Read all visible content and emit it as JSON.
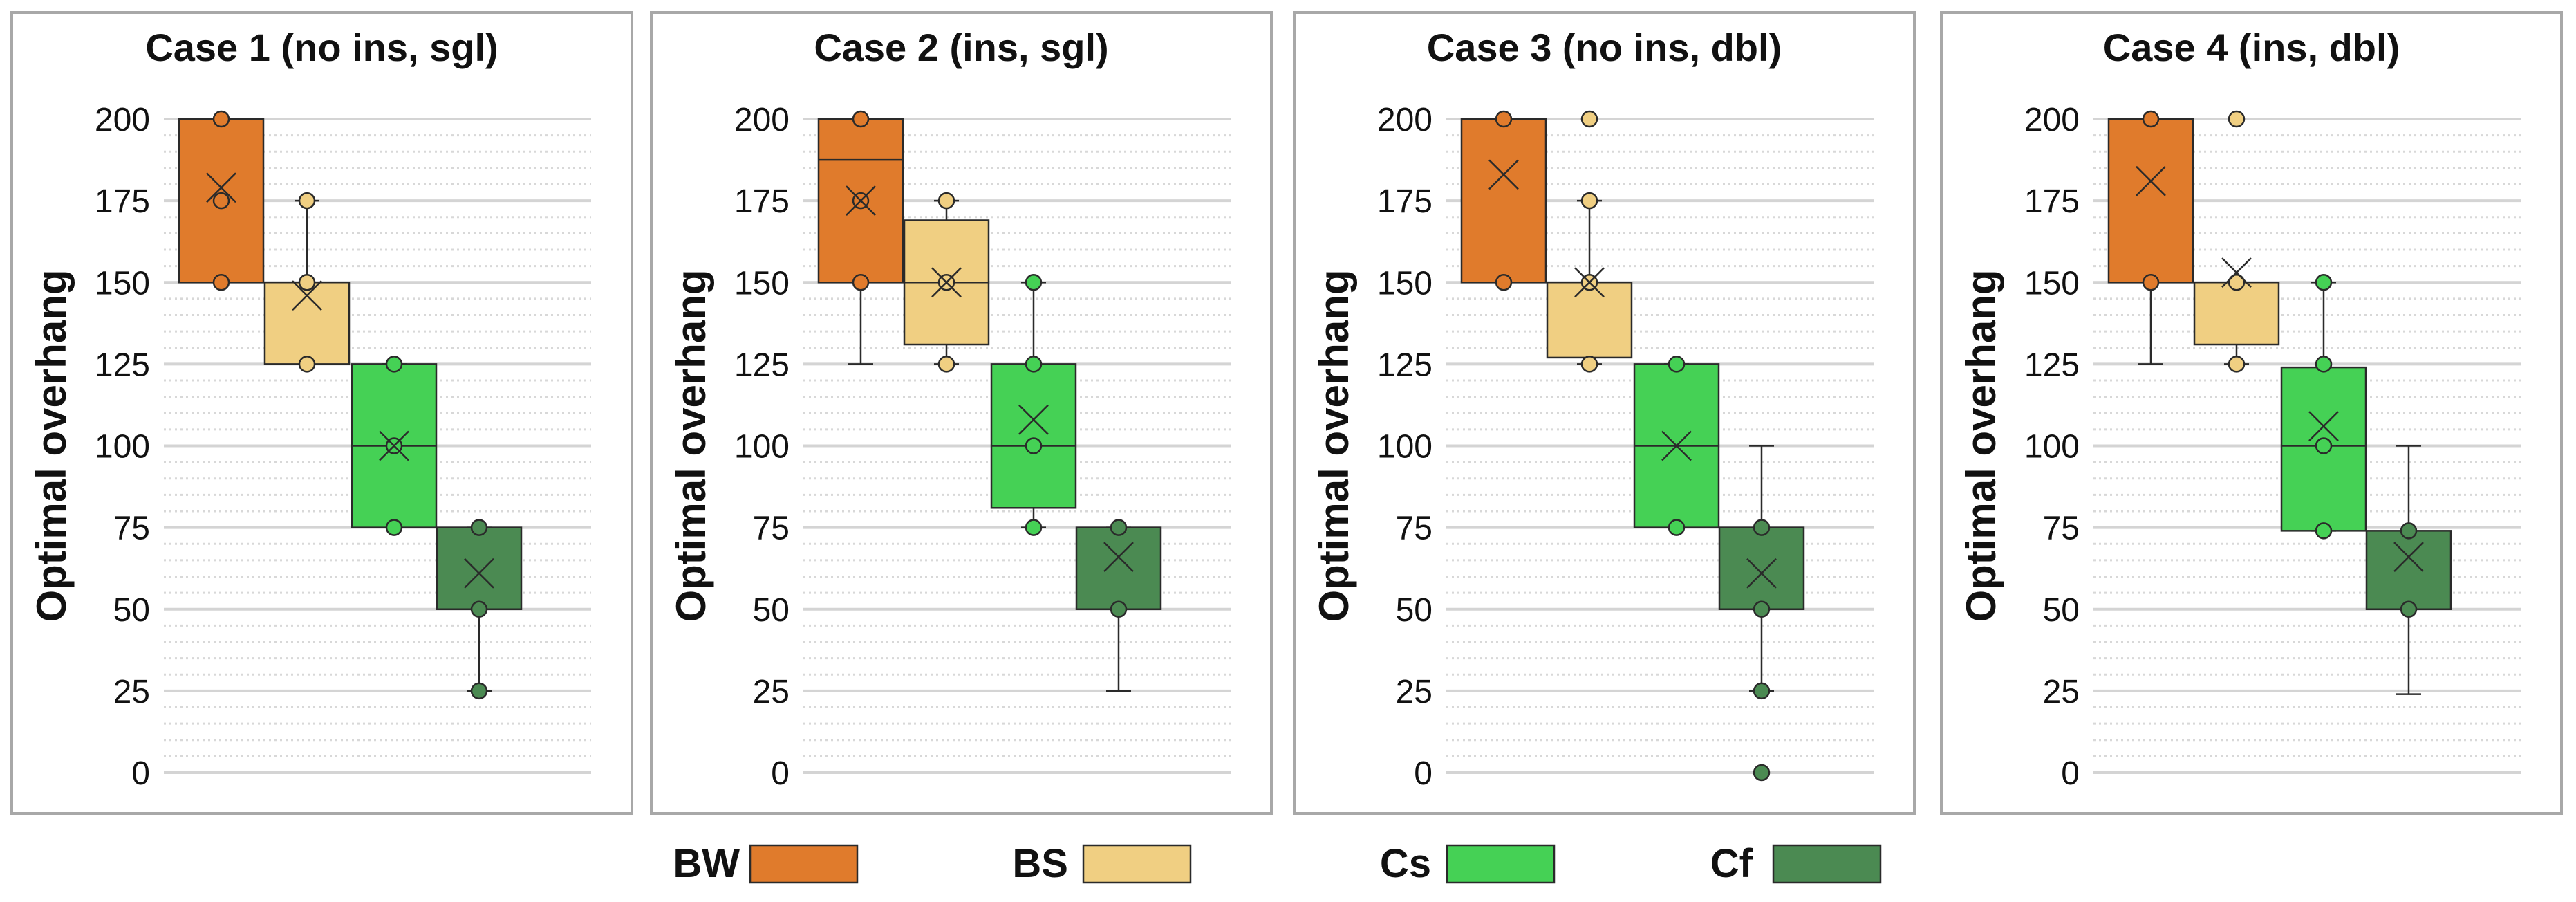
{
  "colors": {
    "BW": "#e07b2c",
    "BS": "#f0cf82",
    "Cs": "#45d155",
    "Cf": "#4b8a52",
    "panel_border": "#a8a8a8",
    "grid_major": "#d4d4d4",
    "grid_minor": "#d8d8d8",
    "stroke": "#2a2a2a"
  },
  "legend": [
    {
      "key": "BW",
      "label": "BW"
    },
    {
      "key": "BS",
      "label": "BS"
    },
    {
      "key": "Cs",
      "label": "Cs"
    },
    {
      "key": "Cf",
      "label": "Cf"
    }
  ],
  "chart_data": [
    {
      "type": "box",
      "title": "Case 1 (no ins, sgl)",
      "ylabel": "Optimal overhang",
      "ylim": [
        0,
        200
      ],
      "yticks": [
        0,
        25,
        50,
        75,
        100,
        125,
        150,
        175,
        200
      ],
      "grid": true,
      "boxes": [
        {
          "series": "BW",
          "q1": 150,
          "median": 150,
          "q3": 200,
          "whisker_low": 150,
          "whisker_high": 200,
          "mean": 179,
          "points": [
            150,
            175,
            200
          ]
        },
        {
          "series": "BS",
          "q1": 125,
          "median": 150,
          "q3": 150,
          "whisker_low": 125,
          "whisker_high": 175,
          "mean": 146,
          "points": [
            125,
            150,
            175
          ]
        },
        {
          "series": "Cs",
          "q1": 75,
          "median": 100,
          "q3": 125,
          "whisker_low": 75,
          "whisker_high": 125,
          "mean": 100,
          "points": [
            75,
            100,
            125
          ]
        },
        {
          "series": "Cf",
          "q1": 50,
          "median": 50,
          "q3": 75,
          "whisker_low": 25,
          "whisker_high": 75,
          "mean": 61,
          "points": [
            25,
            50,
            75
          ]
        }
      ]
    },
    {
      "type": "box",
      "title": "Case 2 (ins, sgl)",
      "ylabel": "Optimal overhang",
      "ylim": [
        0,
        200
      ],
      "yticks": [
        0,
        25,
        50,
        75,
        100,
        125,
        150,
        175,
        200
      ],
      "grid": true,
      "boxes": [
        {
          "series": "BW",
          "q1": 150,
          "median": 187.5,
          "q3": 200,
          "whisker_low": 125,
          "whisker_high": 200,
          "mean": 175,
          "points": [
            150,
            175,
            200
          ]
        },
        {
          "series": "BS",
          "q1": 131,
          "median": 150,
          "q3": 169,
          "whisker_low": 125,
          "whisker_high": 175,
          "mean": 150,
          "points": [
            125,
            150,
            175
          ]
        },
        {
          "series": "Cs",
          "q1": 81,
          "median": 100,
          "q3": 125,
          "whisker_low": 75,
          "whisker_high": 150,
          "mean": 108,
          "points": [
            75,
            100,
            125,
            150
          ]
        },
        {
          "series": "Cf",
          "q1": 50,
          "median": 50,
          "q3": 75,
          "whisker_low": 25,
          "whisker_high": 75,
          "mean": 66,
          "points": [
            50,
            75
          ]
        }
      ]
    },
    {
      "type": "box",
      "title": "Case 3 (no ins, dbl)",
      "ylabel": "Optimal overhang",
      "ylim": [
        0,
        200
      ],
      "yticks": [
        0,
        25,
        50,
        75,
        100,
        125,
        150,
        175,
        200
      ],
      "grid": true,
      "boxes": [
        {
          "series": "BW",
          "q1": 150,
          "median": 150,
          "q3": 200,
          "whisker_low": 150,
          "whisker_high": 200,
          "mean": 183,
          "points": [
            150,
            200
          ]
        },
        {
          "series": "BS",
          "q1": 127,
          "median": 150,
          "q3": 150,
          "whisker_low": 125,
          "whisker_high": 175,
          "mean": 150,
          "points": [
            125,
            150,
            175,
            200
          ]
        },
        {
          "series": "Cs",
          "q1": 75,
          "median": 100,
          "q3": 125,
          "whisker_low": 75,
          "whisker_high": 125,
          "mean": 100,
          "points": [
            75,
            125
          ]
        },
        {
          "series": "Cf",
          "q1": 50,
          "median": 50,
          "q3": 75,
          "whisker_low": 25,
          "whisker_high": 100,
          "mean": 61,
          "points": [
            0,
            25,
            50,
            75
          ]
        }
      ]
    },
    {
      "type": "box",
      "title": "Case 4 (ins, dbl)",
      "ylabel": "Optimal overhang",
      "ylim": [
        0,
        200
      ],
      "yticks": [
        0,
        25,
        50,
        75,
        100,
        125,
        150,
        175,
        200
      ],
      "grid": true,
      "boxes": [
        {
          "series": "BW",
          "q1": 150,
          "median": 150,
          "q3": 200,
          "whisker_low": 125,
          "whisker_high": 200,
          "mean": 181,
          "points": [
            150,
            200
          ]
        },
        {
          "series": "BS",
          "q1": 131,
          "median": 150,
          "q3": 150,
          "whisker_low": 125,
          "whisker_high": 150,
          "mean": 153,
          "points": [
            125,
            150,
            200
          ]
        },
        {
          "series": "Cs",
          "q1": 74,
          "median": 100,
          "q3": 124,
          "whisker_low": 74,
          "whisker_high": 150,
          "mean": 106,
          "points": [
            74,
            100,
            125,
            150
          ]
        },
        {
          "series": "Cf",
          "q1": 50,
          "median": 50,
          "q3": 74,
          "whisker_low": 24,
          "whisker_high": 100,
          "mean": 66,
          "points": [
            50,
            74
          ]
        }
      ]
    }
  ]
}
